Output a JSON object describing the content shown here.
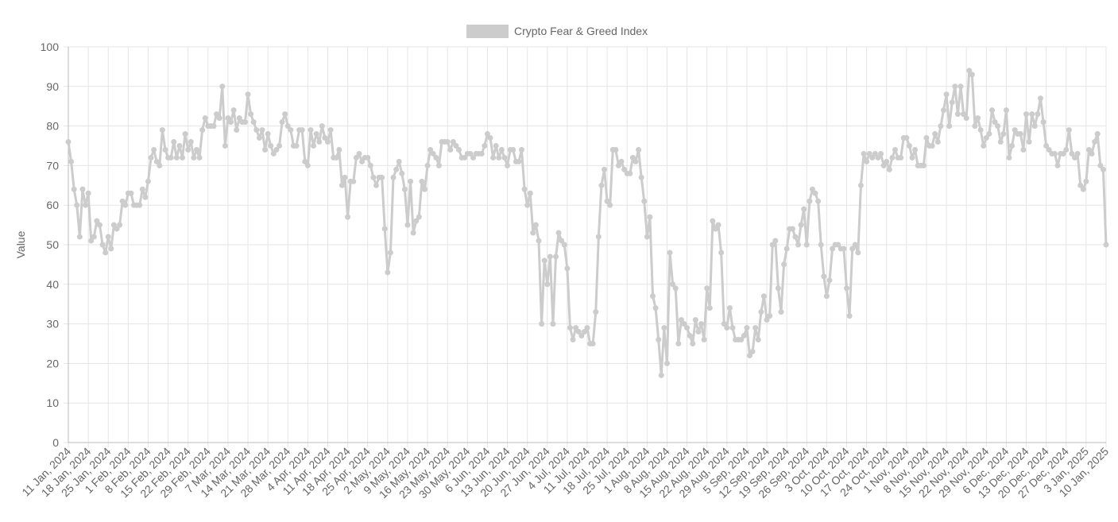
{
  "chart_data": {
    "type": "line",
    "y_label": "Value",
    "ylim": [
      0,
      100
    ],
    "yticks": [
      0,
      10,
      20,
      30,
      40,
      50,
      60,
      70,
      80,
      90,
      100
    ],
    "grid": true,
    "legend": "top",
    "categories": [
      "11 Jan, 2024",
      null,
      null,
      null,
      null,
      null,
      null,
      "18 Jan, 2024",
      null,
      null,
      null,
      null,
      null,
      null,
      "25 Jan, 2024",
      null,
      null,
      null,
      null,
      null,
      null,
      "1 Feb, 2024",
      null,
      null,
      null,
      null,
      null,
      null,
      "8 Feb, 2024",
      null,
      null,
      null,
      null,
      null,
      null,
      "15 Feb, 2024",
      null,
      null,
      null,
      null,
      null,
      null,
      "22 Feb, 2024",
      null,
      null,
      null,
      null,
      null,
      null,
      "29 Feb, 2024",
      null,
      null,
      null,
      null,
      null,
      null,
      "7 Mar, 2024",
      null,
      null,
      null,
      null,
      null,
      null,
      "14 Mar, 2024",
      null,
      null,
      null,
      null,
      null,
      null,
      "21 Mar, 2024",
      null,
      null,
      null,
      null,
      null,
      null,
      "28 Mar, 2024",
      null,
      null,
      null,
      null,
      null,
      null,
      "4 Apr, 2024",
      null,
      null,
      null,
      null,
      null,
      null,
      "11 Apr, 2024",
      null,
      null,
      null,
      null,
      null,
      null,
      "18 Apr, 2024",
      null,
      null,
      null,
      null,
      null,
      null,
      "25 Apr, 2024",
      null,
      null,
      null,
      null,
      null,
      null,
      "2 May, 2024",
      null,
      null,
      null,
      null,
      null,
      null,
      "9 May, 2024",
      null,
      null,
      null,
      null,
      null,
      null,
      "16 May, 2024",
      null,
      null,
      null,
      null,
      null,
      null,
      "23 May, 2024",
      null,
      null,
      null,
      null,
      null,
      null,
      "30 May, 2024",
      null,
      null,
      null,
      null,
      null,
      null,
      "6 Jun, 2024",
      null,
      null,
      null,
      null,
      null,
      null,
      "13 Jun, 2024",
      null,
      null,
      null,
      null,
      null,
      null,
      "20 Jun, 2024",
      null,
      null,
      null,
      null,
      null,
      null,
      "27 Jun, 2024",
      null,
      null,
      null,
      null,
      null,
      null,
      "4 Jul, 2024",
      null,
      null,
      null,
      null,
      null,
      null,
      "11 Jul, 2024",
      null,
      null,
      null,
      null,
      null,
      null,
      "18 Jul, 2024",
      null,
      null,
      null,
      null,
      null,
      null,
      "25 Jul, 2024",
      null,
      null,
      null,
      null,
      null,
      null,
      "1 Aug, 2024",
      null,
      null,
      null,
      null,
      null,
      null,
      "8 Aug, 2024",
      null,
      null,
      null,
      null,
      null,
      null,
      "15 Aug, 2024",
      null,
      null,
      null,
      null,
      null,
      null,
      "22 Aug, 2024",
      null,
      null,
      null,
      null,
      null,
      null,
      "29 Aug, 2024",
      null,
      null,
      null,
      null,
      null,
      null,
      "5 Sep, 2024",
      null,
      null,
      null,
      null,
      null,
      null,
      "12 Sep, 2024",
      null,
      null,
      null,
      null,
      null,
      null,
      "19 Sep, 2024",
      null,
      null,
      null,
      null,
      null,
      null,
      "26 Sep, 2024",
      null,
      null,
      null,
      null,
      null,
      null,
      "3 Oct, 2024",
      null,
      null,
      null,
      null,
      null,
      null,
      "10 Oct, 2024",
      null,
      null,
      null,
      null,
      null,
      null,
      "17 Oct, 2024",
      null,
      null,
      null,
      null,
      null,
      null,
      "24 Oct, 2024",
      null,
      null,
      null,
      null,
      null,
      null,
      "1 Nov, 2024",
      null,
      null,
      null,
      null,
      null,
      null,
      "8 Nov, 2024",
      null,
      null,
      null,
      null,
      null,
      null,
      "15 Nov, 2024",
      null,
      null,
      null,
      null,
      null,
      null,
      "22 Nov, 2024",
      null,
      null,
      null,
      null,
      null,
      null,
      "29 Nov, 2024",
      null,
      null,
      null,
      null,
      null,
      null,
      "6 Dec, 2024",
      null,
      null,
      null,
      null,
      null,
      null,
      "13 Dec, 2024",
      null,
      null,
      null,
      null,
      null,
      null,
      "20 Dec, 2024",
      null,
      null,
      null,
      null,
      null,
      null,
      "27 Dec, 2024",
      null,
      null,
      null,
      null,
      null,
      null,
      "3 Jan, 2025",
      null,
      null,
      null,
      null,
      null,
      null,
      "10 Jan, 2025"
    ],
    "series": [
      {
        "name": "Crypto Fear & Greed Index",
        "color": "#cccccc",
        "values": [
          76,
          71,
          64,
          60,
          52,
          64,
          60,
          63,
          51,
          52,
          56,
          55,
          50,
          48,
          52,
          49,
          55,
          54,
          55,
          61,
          60,
          63,
          63,
          60,
          60,
          60,
          64,
          62,
          66,
          72,
          74,
          71,
          70,
          79,
          74,
          72,
          72,
          76,
          72,
          75,
          72,
          78,
          74,
          76,
          72,
          74,
          72,
          79,
          82,
          80,
          80,
          80,
          83,
          82,
          90,
          75,
          82,
          81,
          84,
          79,
          82,
          81,
          81,
          88,
          83,
          81,
          79,
          77,
          79,
          74,
          78,
          75,
          73,
          74,
          75,
          81,
          83,
          80,
          79,
          75,
          75,
          79,
          79,
          71,
          70,
          79,
          75,
          78,
          76,
          80,
          77,
          76,
          79,
          72,
          72,
          74,
          65,
          67,
          57,
          66,
          66,
          72,
          73,
          71,
          72,
          72,
          70,
          67,
          65,
          67,
          67,
          54,
          43,
          48,
          67,
          69,
          71,
          68,
          64,
          55,
          66,
          53,
          56,
          57,
          66,
          64,
          70,
          74,
          73,
          72,
          70,
          76,
          76,
          76,
          74,
          76,
          75,
          74,
          72,
          72,
          73,
          73,
          72,
          73,
          73,
          73,
          75,
          78,
          77,
          72,
          75,
          72,
          74,
          72,
          70,
          74,
          74,
          71,
          71,
          74,
          64,
          60,
          63,
          53,
          55,
          51,
          30,
          46,
          40,
          47,
          30,
          47,
          53,
          51,
          50,
          44,
          29,
          26,
          29,
          28,
          27,
          28,
          29,
          25,
          25,
          33,
          52,
          65,
          69,
          61,
          60,
          74,
          74,
          70,
          71,
          69,
          68,
          68,
          72,
          71,
          74,
          67,
          61,
          52,
          57,
          37,
          34,
          26,
          17,
          29,
          20,
          48,
          40,
          39,
          25,
          31,
          30,
          29,
          27,
          25,
          31,
          28,
          30,
          26,
          39,
          34,
          56,
          54,
          55,
          48,
          30,
          29,
          34,
          29,
          26,
          26,
          26,
          27,
          29,
          22,
          23,
          29,
          26,
          33,
          37,
          31,
          32,
          50,
          51,
          39,
          33,
          45,
          49,
          54,
          54,
          52,
          50,
          55,
          59,
          50,
          61,
          64,
          63,
          61,
          50,
          42,
          37,
          41,
          49,
          50,
          50,
          49,
          49,
          39,
          32,
          49,
          50,
          48,
          65,
          73,
          71,
          73,
          72,
          73,
          72,
          73,
          70,
          71,
          69,
          72,
          74,
          72,
          72,
          77,
          77,
          75,
          72,
          74,
          70,
          70,
          70,
          77,
          75,
          75,
          78,
          76,
          80,
          84,
          88,
          80,
          86,
          90,
          83,
          90,
          83,
          82,
          94,
          93,
          80,
          82,
          79,
          75,
          77,
          78,
          84,
          81,
          80,
          76,
          78,
          84,
          72,
          75,
          79,
          78,
          78,
          74,
          83,
          76,
          83,
          80,
          83,
          87,
          81,
          75,
          74,
          73,
          73,
          70,
          73,
          73,
          74,
          79,
          73,
          72,
          73,
          65,
          64,
          66,
          74,
          73,
          76,
          78,
          70,
          69,
          50
        ]
      }
    ]
  }
}
